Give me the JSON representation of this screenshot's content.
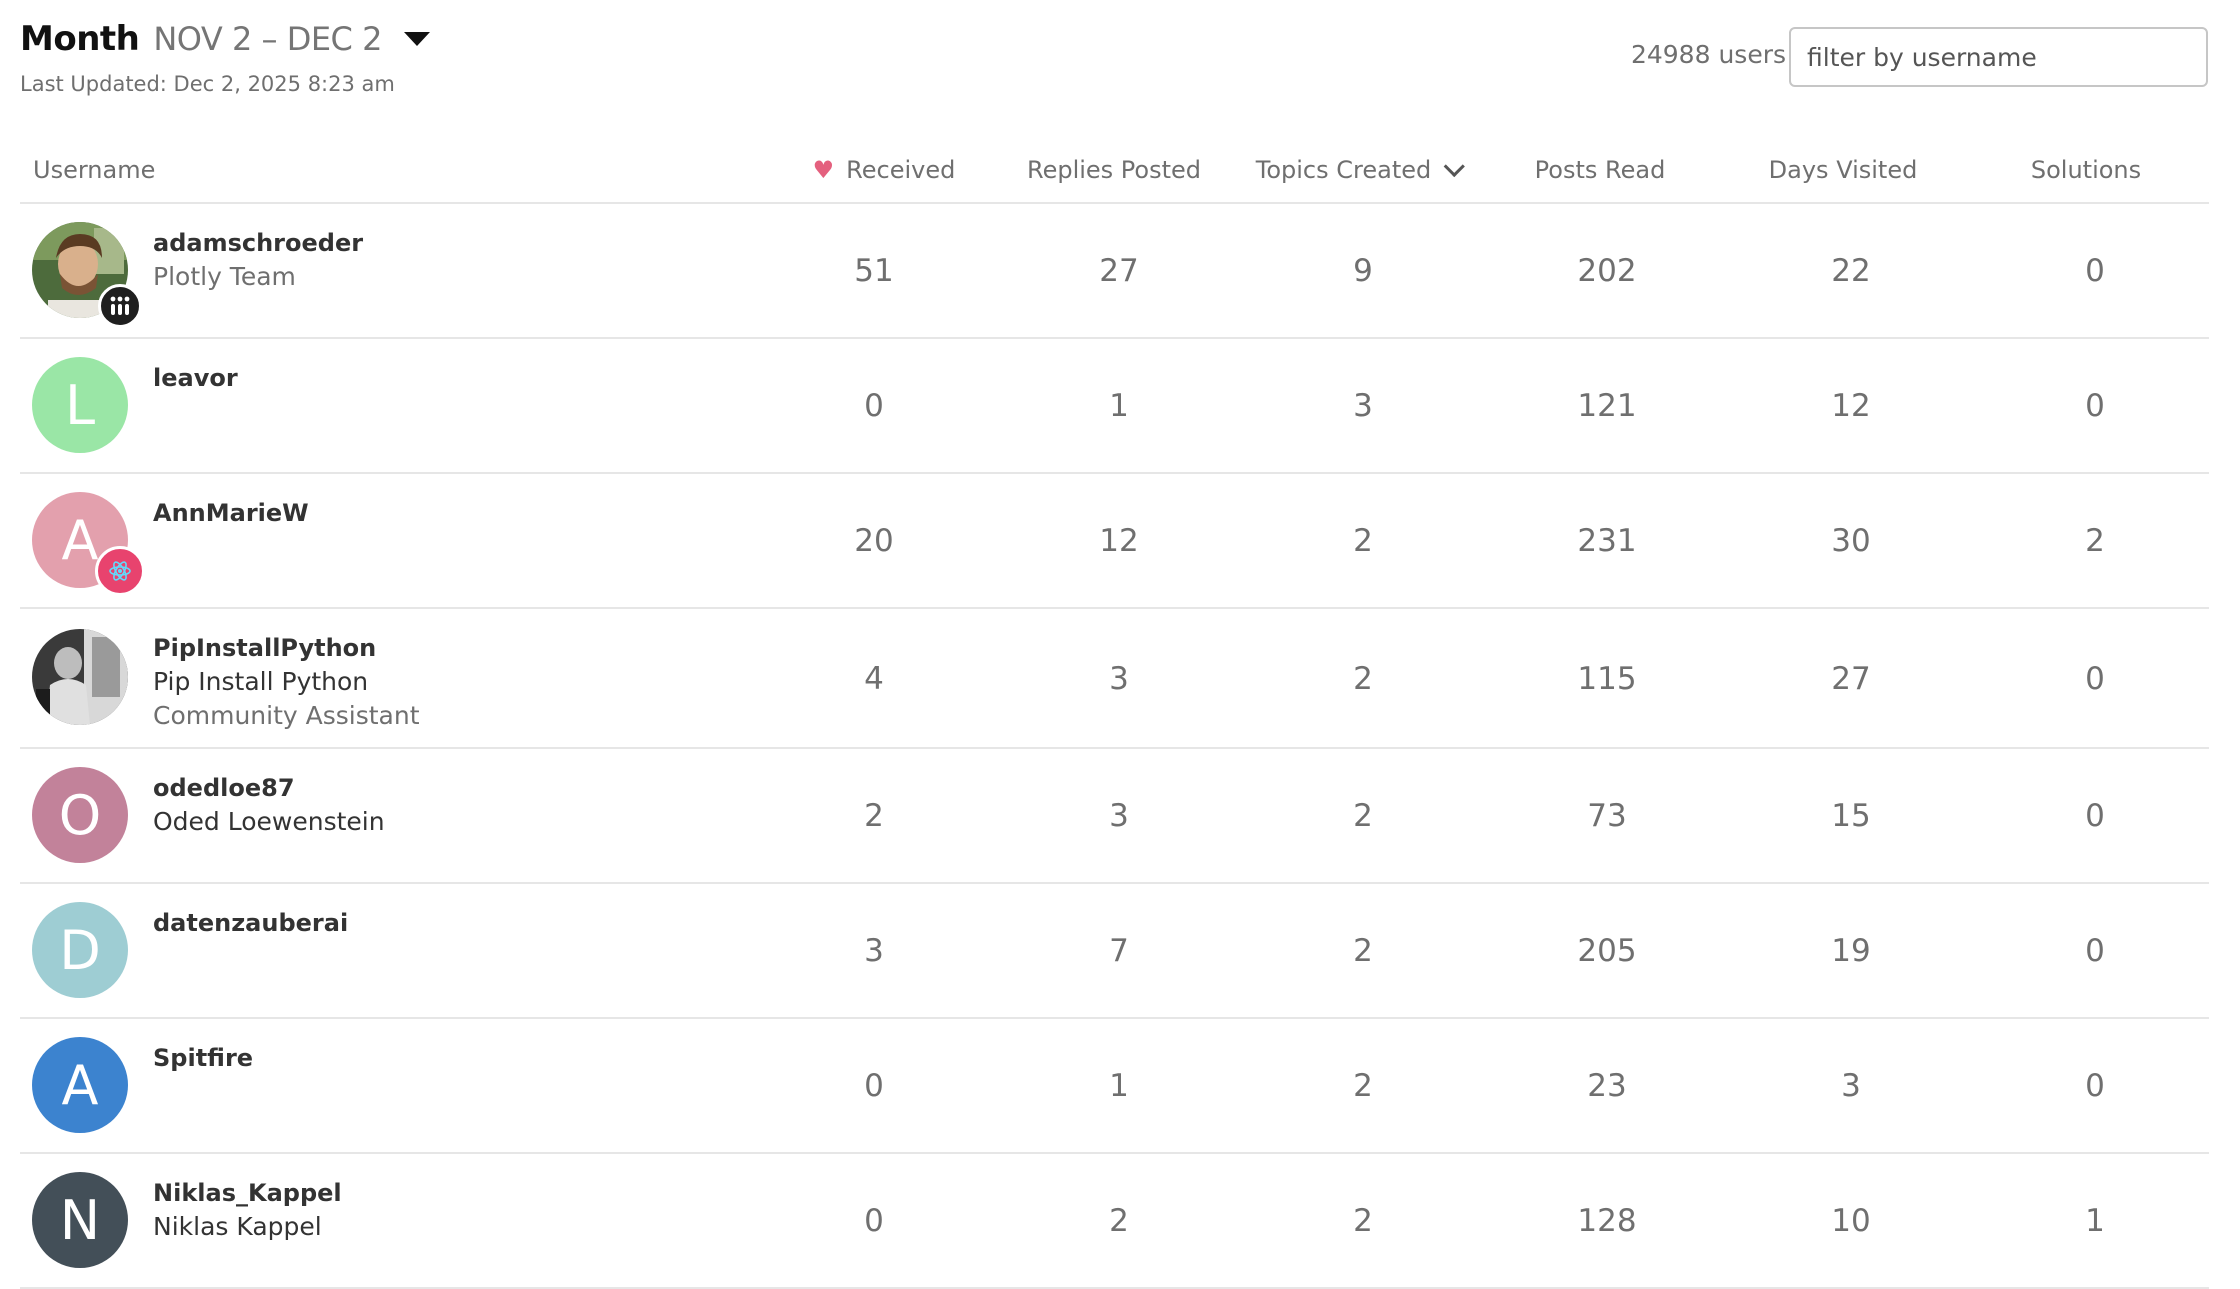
{
  "header": {
    "period_label": "Month",
    "period_range": "NOV 2 – DEC 2",
    "last_updated": "Last Updated: Dec 2, 2025 8:23 am",
    "user_count": "24988 users",
    "filter_placeholder": "filter by username"
  },
  "columns": {
    "username": "Username",
    "received": "Received",
    "replies_posted": "Replies Posted",
    "topics_created": "Topics Created",
    "posts_read": "Posts Read",
    "days_visited": "Days Visited",
    "solutions": "Solutions"
  },
  "rows": [
    {
      "username": "adamschroeder",
      "fullname": "",
      "title": "Plotly Team",
      "avatar_letter": "",
      "avatar_color": "",
      "received": "51",
      "replies_posted": "27",
      "topics_created": "9",
      "posts_read": "202",
      "days_visited": "22",
      "solutions": "0"
    },
    {
      "username": "leavor",
      "fullname": "",
      "title": "",
      "avatar_letter": "L",
      "avatar_color": "#9ae6a6",
      "received": "0",
      "replies_posted": "1",
      "topics_created": "3",
      "posts_read": "121",
      "days_visited": "12",
      "solutions": "0"
    },
    {
      "username": "AnnMarieW",
      "fullname": "",
      "title": "",
      "avatar_letter": "A",
      "avatar_color": "#e3a0ad",
      "received": "20",
      "replies_posted": "12",
      "topics_created": "2",
      "posts_read": "231",
      "days_visited": "30",
      "solutions": "2"
    },
    {
      "username": "PipInstallPython",
      "fullname": "Pip Install Python",
      "title": "Community Assistant",
      "avatar_letter": "",
      "avatar_color": "",
      "received": "4",
      "replies_posted": "3",
      "topics_created": "2",
      "posts_read": "115",
      "days_visited": "27",
      "solutions": "0"
    },
    {
      "username": "odedloe87",
      "fullname": "Oded Loewenstein",
      "title": "",
      "avatar_letter": "O",
      "avatar_color": "#c2829a",
      "received": "2",
      "replies_posted": "3",
      "topics_created": "2",
      "posts_read": "73",
      "days_visited": "15",
      "solutions": "0"
    },
    {
      "username": "datenzauberai",
      "fullname": "",
      "title": "",
      "avatar_letter": "D",
      "avatar_color": "#9ecdd3",
      "received": "3",
      "replies_posted": "7",
      "topics_created": "2",
      "posts_read": "205",
      "days_visited": "19",
      "solutions": "0"
    },
    {
      "username": "Spitfire",
      "fullname": "",
      "title": "",
      "avatar_letter": "A",
      "avatar_color": "#3c83cf",
      "received": "0",
      "replies_posted": "1",
      "topics_created": "2",
      "posts_read": "23",
      "days_visited": "3",
      "solutions": "0"
    },
    {
      "username": "Niklas_Kappel",
      "fullname": "Niklas Kappel",
      "title": "",
      "avatar_letter": "N",
      "avatar_color": "#434f58",
      "received": "0",
      "replies_posted": "2",
      "topics_created": "2",
      "posts_read": "128",
      "days_visited": "10",
      "solutions": "1"
    }
  ],
  "colors": {
    "heart": "#e4607e",
    "plotly_badge": "#1f1f1f",
    "react_badge": "#e8436e",
    "react_icon": "#61dafb"
  },
  "icons": {
    "received": "heart-icon",
    "sort": "chevron-down-icon",
    "period": "caret-down-icon"
  }
}
